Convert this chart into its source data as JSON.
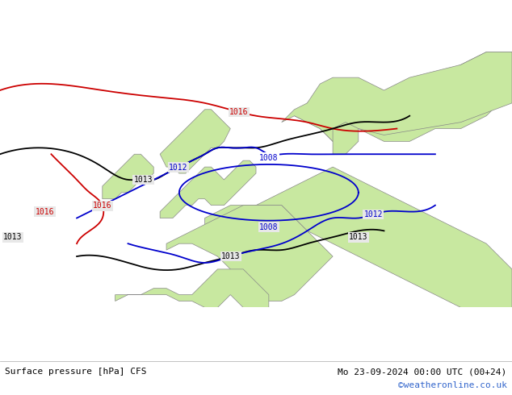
{
  "title_left": "Surface pressure [hPa] CFS",
  "title_right": "Mo 23-09-2024 00:00 UTC (00+24)",
  "watermark": "©weatheronline.co.uk",
  "bg_ocean": "#e8e8e8",
  "bg_land": "#c8e8a0",
  "border_color": "#888888",
  "contour_colors": {
    "1008": "#0000cc",
    "1012": "#0000cc",
    "1013": "#000000",
    "1016_red": "#cc0000",
    "1016_black": "#000000"
  },
  "figsize": [
    6.34,
    4.9
  ],
  "dpi": 100
}
